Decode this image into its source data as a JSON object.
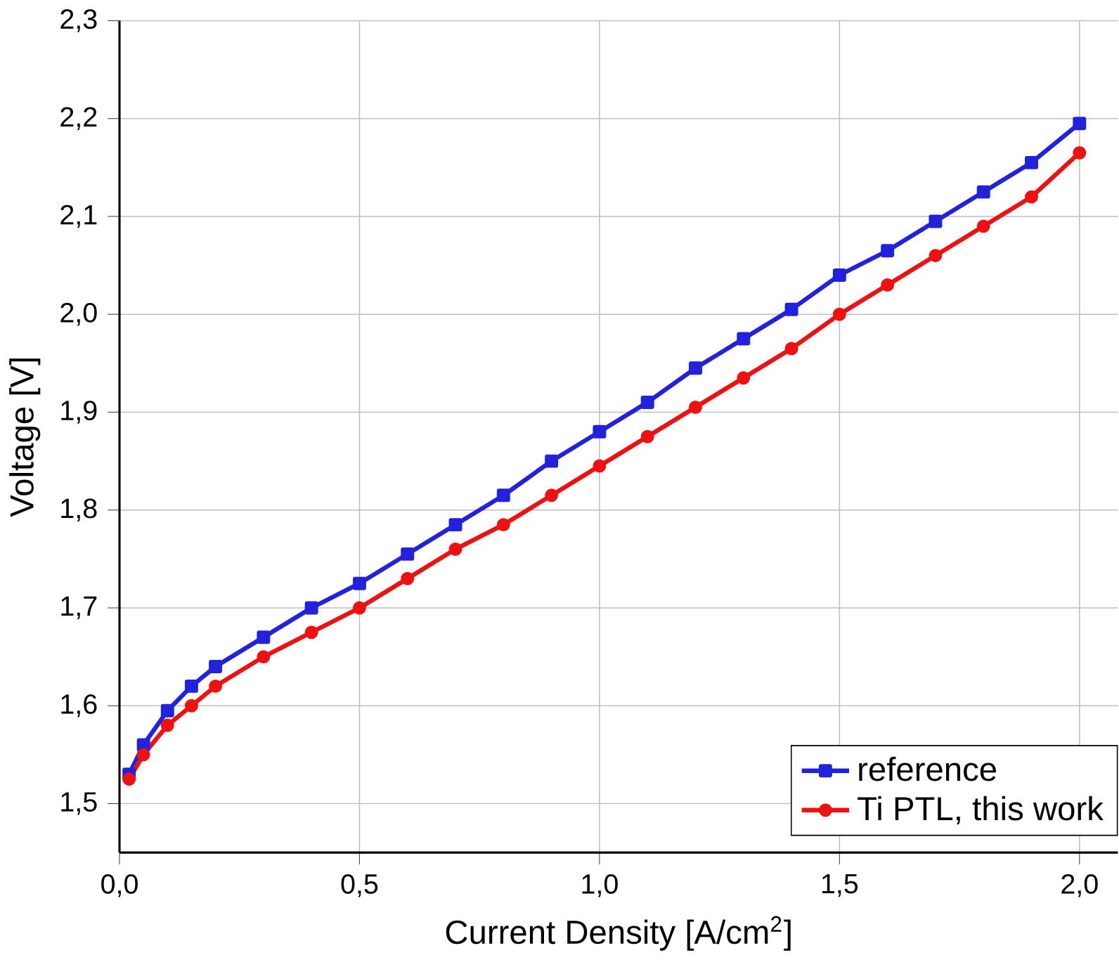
{
  "chart_data": {
    "type": "line",
    "xlabel": "Current Density [A/cm$^{2}$]",
    "ylabel": "Voltage [V]",
    "xlim": [
      0,
      2.08
    ],
    "ylim": [
      1.45,
      2.3
    ],
    "xticks": [
      {
        "value": 0,
        "label": "0,0"
      },
      {
        "value": 0.5,
        "label": "0,5"
      },
      {
        "value": 1,
        "label": "1,0"
      },
      {
        "value": 1.5,
        "label": "1,5"
      },
      {
        "value": 2,
        "label": "2,0"
      }
    ],
    "yticks": [
      {
        "value": 1.5,
        "label": "1,5"
      },
      {
        "value": 1.6,
        "label": "1,6"
      },
      {
        "value": 1.7,
        "label": "1,7"
      },
      {
        "value": 1.8,
        "label": "1,8"
      },
      {
        "value": 1.9,
        "label": "1,9"
      },
      {
        "value": 2.0,
        "label": "2,0"
      },
      {
        "value": 2.1,
        "label": "2,1"
      },
      {
        "value": 2.2,
        "label": "2,2"
      },
      {
        "value": 2.3,
        "label": "2,3"
      }
    ],
    "grid": true,
    "legend": "bottom right",
    "line_style": "solid",
    "x": [
      0.02,
      0.05,
      0.1,
      0.15,
      0.2,
      0.3,
      0.4,
      0.5,
      0.6,
      0.7,
      0.8,
      0.9,
      1.0,
      1.1,
      1.2,
      1.3,
      1.4,
      1.5,
      1.6,
      1.7,
      1.8,
      1.9,
      2.0
    ],
    "series": [
      {
        "name": "reference",
        "color": "#2222dd",
        "marker": "square",
        "values": [
          1.53,
          1.56,
          1.595,
          1.62,
          1.64,
          1.67,
          1.7,
          1.725,
          1.755,
          1.785,
          1.815,
          1.85,
          1.88,
          1.91,
          1.945,
          1.975,
          2.005,
          2.04,
          2.065,
          2.095,
          2.125,
          2.155,
          2.195
        ]
      },
      {
        "name": "Ti PTL, this work",
        "color": "#ee1111",
        "marker": "circle",
        "values": [
          1.525,
          1.55,
          1.58,
          1.6,
          1.62,
          1.65,
          1.675,
          1.7,
          1.73,
          1.76,
          1.785,
          1.815,
          1.845,
          1.875,
          1.905,
          1.935,
          1.965,
          2.0,
          2.03,
          2.06,
          2.09,
          2.12,
          2.165
        ]
      }
    ]
  }
}
